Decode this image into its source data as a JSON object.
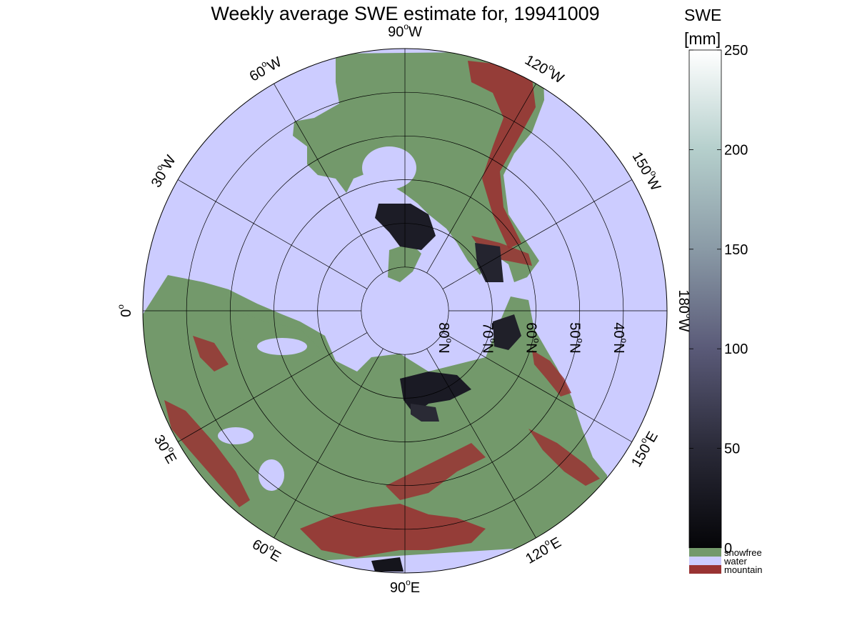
{
  "title": "Weekly average SWE estimate for, 19941009",
  "map": {
    "projection": "north-polar-stereographic",
    "center_lat": 90,
    "outer_lat": 30,
    "longitude_labels": [
      {
        "lon": 90,
        "text": "90",
        "hemi": "W"
      },
      {
        "lon": 120,
        "text": "120",
        "hemi": "W"
      },
      {
        "lon": 150,
        "text": "150",
        "hemi": "W"
      },
      {
        "lon": 180,
        "text": "180",
        "hemi": "W"
      },
      {
        "lon": -150,
        "text": "150",
        "hemi": "E"
      },
      {
        "lon": -120,
        "text": "120",
        "hemi": "E"
      },
      {
        "lon": -90,
        "text": "90",
        "hemi": "E"
      },
      {
        "lon": -60,
        "text": "60",
        "hemi": "E"
      },
      {
        "lon": -30,
        "text": "30",
        "hemi": "E"
      },
      {
        "lon": 0,
        "text": "0",
        "hemi": ""
      },
      {
        "lon": 30,
        "text": "30",
        "hemi": "W"
      },
      {
        "lon": 60,
        "text": "60",
        "hemi": "W"
      }
    ],
    "latitude_labels": [
      {
        "lat": 80,
        "text": "80",
        "hemi": "N"
      },
      {
        "lat": 70,
        "text": "70",
        "hemi": "N"
      },
      {
        "lat": 60,
        "text": "60",
        "hemi": "N"
      },
      {
        "lat": 50,
        "text": "50",
        "hemi": "N"
      },
      {
        "lat": 40,
        "text": "40",
        "hemi": "N"
      }
    ],
    "colors": {
      "water": "#ccccff",
      "snowfree": "#73996b",
      "mountain": "#993333",
      "grid": "#000000"
    }
  },
  "colorbar": {
    "title_line1": "SWE",
    "title_line2": "[mm]",
    "min": 0,
    "max": 250,
    "ticks": [
      0,
      50,
      100,
      150,
      200,
      250
    ],
    "categories": [
      {
        "label": "snowfree",
        "color": "#73996b"
      },
      {
        "label": "water",
        "color": "#ccccff"
      },
      {
        "label": "mountain",
        "color": "#993333"
      }
    ]
  }
}
